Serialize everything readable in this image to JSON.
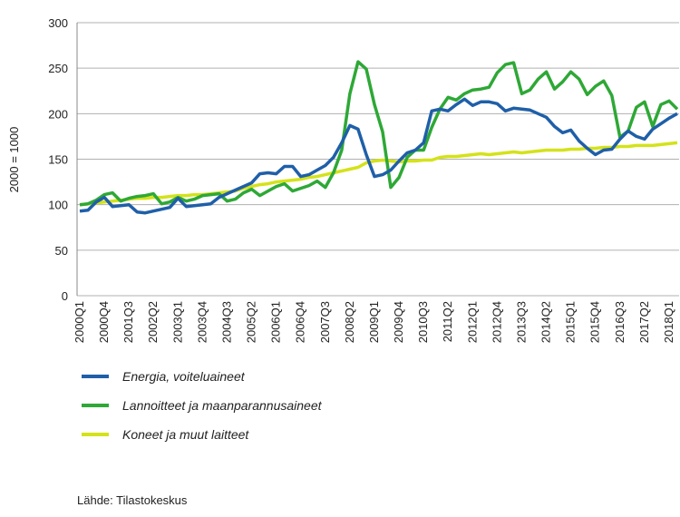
{
  "chart_data": {
    "type": "line",
    "y_label": "2000 = 1000",
    "source": "Lähde: Tilastokeskus",
    "categories": [
      "2000Q1",
      null,
      null,
      "2000Q4",
      null,
      null,
      "2001Q3",
      null,
      null,
      "2002Q2",
      null,
      null,
      "2003Q1",
      null,
      null,
      "2003Q4",
      null,
      null,
      "2004Q3",
      null,
      null,
      "2005Q2",
      null,
      null,
      "2006Q1",
      null,
      null,
      "2006Q4",
      null,
      null,
      "2007Q3",
      null,
      null,
      "2008Q2",
      null,
      null,
      "2009Q1",
      null,
      null,
      "2009Q4",
      null,
      null,
      "2010Q3",
      null,
      null,
      "2011Q2",
      null,
      null,
      "2012Q1",
      null,
      null,
      "2012Q4",
      null,
      null,
      "2013Q3",
      null,
      null,
      "2014Q2",
      null,
      null,
      "2015Q1",
      null,
      null,
      "2015Q4",
      null,
      null,
      "2016Q3",
      null,
      null,
      "2017Q2",
      null,
      null,
      "2018Q1",
      null
    ],
    "series": [
      {
        "name": "Energia, voiteluaineet",
        "color": "#1f5fa8",
        "values": [
          93,
          94,
          103,
          108,
          98,
          99,
          100,
          92,
          91,
          93,
          95,
          97,
          107,
          98,
          99,
          100,
          101,
          108,
          112,
          116,
          120,
          124,
          134,
          135,
          134,
          142,
          142,
          131,
          133,
          138,
          143,
          152,
          168,
          187,
          183,
          155,
          131,
          133,
          138,
          148,
          157,
          160,
          168,
          203,
          205,
          203,
          210,
          216,
          209,
          213,
          213,
          211,
          203,
          206,
          205,
          204,
          200,
          196,
          186,
          179,
          182,
          170,
          162,
          155,
          160,
          161,
          172,
          181,
          175,
          172,
          183,
          189,
          195,
          200
        ]
      },
      {
        "name": "Lannoitteet ja maanparannusaineet",
        "color": "#2ea836",
        "values": [
          100,
          101,
          105,
          111,
          113,
          104,
          107,
          109,
          110,
          112,
          101,
          103,
          108,
          104,
          106,
          110,
          111,
          112,
          104,
          106,
          113,
          117,
          110,
          115,
          120,
          123,
          115,
          118,
          121,
          126,
          119,
          135,
          160,
          222,
          257,
          249,
          210,
          180,
          119,
          130,
          152,
          160,
          160,
          185,
          205,
          218,
          215,
          222,
          226,
          227,
          229,
          245,
          254,
          256,
          222,
          226,
          238,
          246,
          227,
          235,
          246,
          238,
          221,
          230,
          236,
          220,
          174,
          181,
          207,
          213,
          186,
          210,
          214,
          205
        ]
      },
      {
        "name": "Koneet ja muut laitteet",
        "color": "#d4e21a",
        "values": [
          100,
          101,
          102,
          103,
          104,
          105,
          106,
          107,
          107,
          108,
          108,
          109,
          110,
          110,
          111,
          111,
          112,
          113,
          114,
          115,
          118,
          120,
          122,
          123,
          125,
          126,
          127,
          128,
          130,
          131,
          133,
          135,
          137,
          139,
          141,
          146,
          148,
          149,
          148,
          147,
          148,
          148,
          149,
          149,
          152,
          153,
          153,
          154,
          155,
          156,
          155,
          156,
          157,
          158,
          157,
          158,
          159,
          160,
          160,
          160,
          161,
          161,
          162,
          162,
          163,
          163,
          164,
          164,
          165,
          165,
          165,
          166,
          167,
          168
        ]
      }
    ],
    "ylim": [
      0,
      300
    ],
    "yticks": [
      0,
      50,
      100,
      150,
      200,
      250,
      300
    ],
    "grid": true
  }
}
